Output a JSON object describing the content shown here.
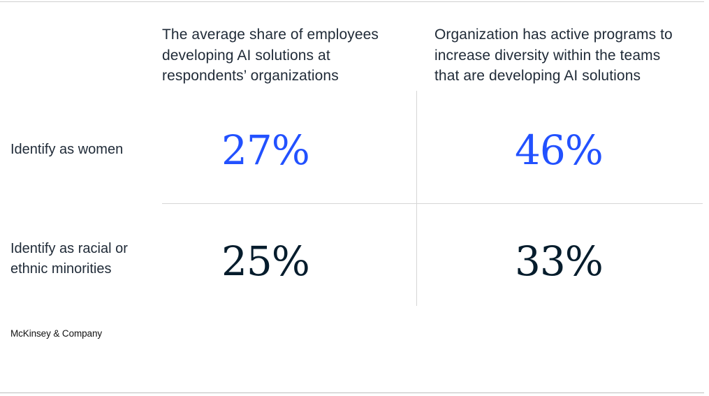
{
  "chart_data": {
    "type": "table",
    "columns": [
      "The average share of employees\ndeveloping AI solutions at\nrespondents’ organizations",
      "Organization has active programs to\nincrease diversity within the teams\nthat are developing AI solutions"
    ],
    "rows": [
      {
        "label": "Identify as women",
        "values": [
          "27%",
          "46%"
        ]
      },
      {
        "label": "Identify as racial or\nethnic minorities",
        "values": [
          "25%",
          "33%"
        ]
      }
    ],
    "colors": {
      "row1_values": "#2251ff",
      "row2_values": "#051c2c"
    }
  },
  "source": "McKinsey & Company"
}
